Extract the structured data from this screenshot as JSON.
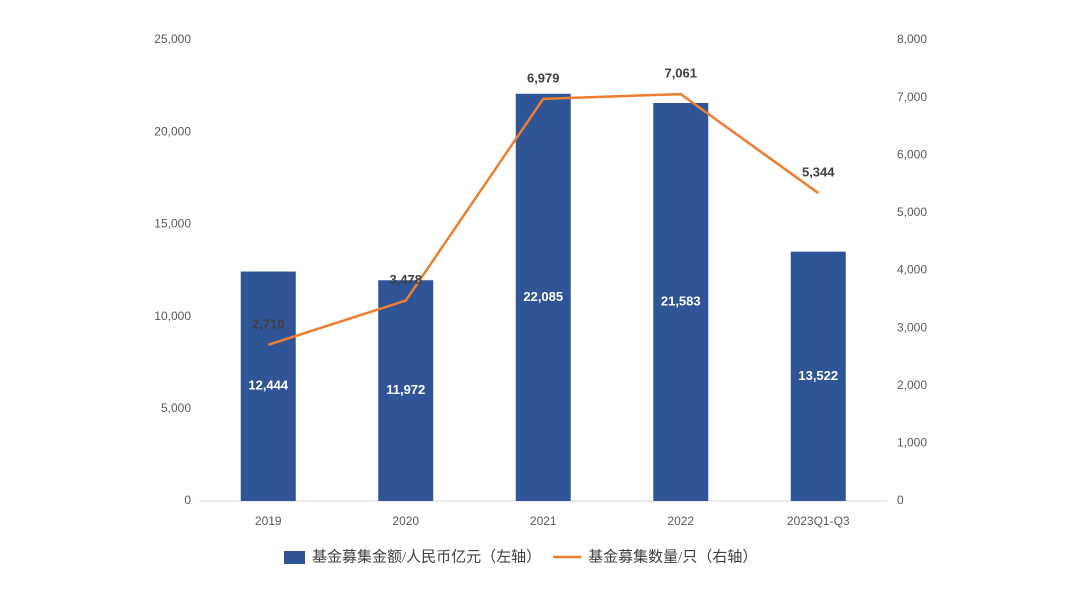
{
  "chart_data": {
    "type": "bar",
    "categories": [
      "2019",
      "2020",
      "2021",
      "2022",
      "2023Q1-Q3"
    ],
    "series": [
      {
        "name": "基金募集金额/人民币亿元（左轴）",
        "type": "bar",
        "color": "#2f5597",
        "values": [
          12444,
          11972,
          22085,
          21583,
          13522
        ],
        "value_labels": [
          "12,444",
          "11,972",
          "22,085",
          "21,583",
          "13,522"
        ]
      },
      {
        "name": "基金募集数量/只（右轴）",
        "type": "line",
        "axis": "y2",
        "color": "#ed7d31",
        "values": [
          2710,
          3478,
          6979,
          7061,
          5344
        ],
        "value_labels": [
          "2,710",
          "3,478",
          "6,979",
          "7,061",
          "5,344"
        ]
      }
    ],
    "ylim": [
      0,
      25000
    ],
    "yticks": [
      0,
      {
        "value": 5000,
        "label": "5,000"
      },
      {
        "value": 10000,
        "label": "10,000"
      },
      {
        "value": 15000,
        "label": "15,000"
      },
      {
        "value": 20000,
        "label": "20,000"
      },
      {
        "value": 25000,
        "label": "25,000"
      }
    ],
    "y2lim": [
      0,
      8000
    ],
    "y2ticks": [
      0,
      {
        "value": 1000,
        "label": "1,000"
      },
      {
        "value": 2000,
        "label": "2,000"
      },
      {
        "value": 3000,
        "label": "3,000"
      },
      {
        "value": 4000,
        "label": "4,000"
      },
      {
        "value": 5000,
        "label": "5,000"
      },
      {
        "value": 6000,
        "label": "6,000"
      },
      {
        "value": 7000,
        "label": "7,000"
      },
      {
        "value": 8000,
        "label": "8,000"
      }
    ],
    "grid": false
  }
}
